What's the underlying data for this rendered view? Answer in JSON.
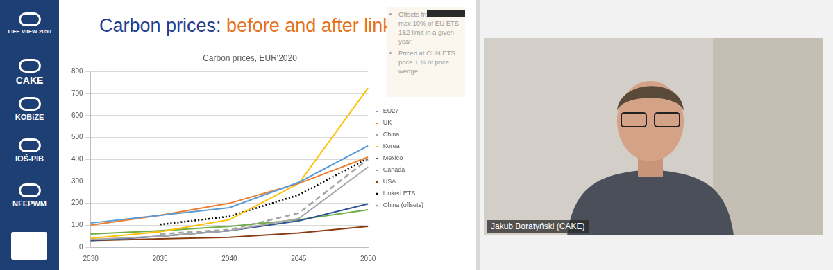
{
  "chart_data": {
    "type": "line",
    "title": "Carbon prices, EUR'2020",
    "categories": [
      "2030",
      "2035",
      "2040",
      "2045",
      "2050"
    ],
    "series": [
      {
        "name": "EU27",
        "color": "#5b9bd5",
        "line_style": "solid",
        "values": [
          110,
          145,
          180,
          295,
          462
        ]
      },
      {
        "name": "UK",
        "color": "#ed7d31",
        "line_style": "solid",
        "values": [
          100,
          145,
          200,
          290,
          410
        ]
      },
      {
        "name": "China",
        "color": "#a5a5a5",
        "line_style": "solid",
        "values": [
          35,
          50,
          75,
          130,
          365
        ]
      },
      {
        "name": "Korea",
        "color": "#ffc000",
        "line_style": "solid",
        "values": [
          40,
          70,
          125,
          290,
          725
        ]
      },
      {
        "name": "Mexico",
        "color": "#2e5597",
        "line_style": "solid",
        "values": [
          30,
          50,
          75,
          120,
          197
        ]
      },
      {
        "name": "Canada",
        "color": "#70ad47",
        "line_style": "solid",
        "values": [
          60,
          75,
          95,
          125,
          170
        ]
      },
      {
        "name": "USA",
        "color": "#8a3b12",
        "line_style": "solid",
        "values": [
          30,
          38,
          45,
          65,
          95
        ]
      },
      {
        "name": "Linked ETS",
        "color": "#000000",
        "line_style": "dotted",
        "values": [
          null,
          103,
          140,
          238,
          405
        ]
      },
      {
        "name": "China (offsets)",
        "color": "#a5a5a5",
        "line_style": "dashed",
        "values": [
          null,
          60,
          80,
          155,
          400
        ]
      }
    ],
    "ylim": [
      0,
      800
    ],
    "yticks": [
      0,
      100,
      200,
      300,
      400,
      500,
      600,
      700,
      800
    ],
    "grid": true,
    "legend": "right"
  },
  "slide": {
    "title_part1": "Carbon prices:",
    "title_part2": "before and after linking",
    "notes": [
      "Offsets from",
      "max 10% of EU ETS 1&2 limit in a given year.",
      "Priced at CHN ETS price + ¼ of price wedge"
    ],
    "sidebar": [
      "LIFE VIIEW 2050",
      "CAKE",
      "KOBiZE",
      "IOŚ-PIB",
      "NFEPWM"
    ]
  },
  "video": {
    "speaker": "Jakub Boratyński (CAKE)"
  }
}
